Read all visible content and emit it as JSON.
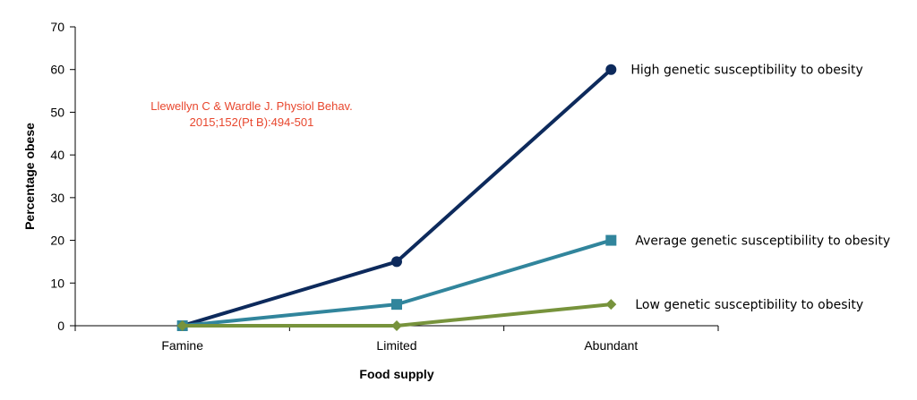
{
  "chart_data": {
    "type": "line",
    "title": "",
    "xlabel": "Food supply",
    "ylabel": "Percentage obese",
    "categories": [
      "Famine",
      "Limited",
      "Abundant"
    ],
    "ylim": [
      0,
      70
    ],
    "yticks": [
      0,
      10,
      20,
      30,
      40,
      50,
      60,
      70
    ],
    "grid": false,
    "legend": "labels at line ends (right)",
    "series": [
      {
        "name": "High genetic susceptibility to obesity",
        "values": [
          0,
          15,
          60
        ],
        "color": "#0d2a5c",
        "marker": "circle"
      },
      {
        "name": "Average genetic susceptibility to obesity",
        "values": [
          0,
          5,
          20
        ],
        "color": "#31859c",
        "marker": "square"
      },
      {
        "name": "Low genetic susceptibility to obesity",
        "values": [
          0,
          0,
          5
        ],
        "color": "#77933c",
        "marker": "diamond"
      }
    ],
    "annotations": [
      {
        "lines": [
          "Llewellyn C & Wardle J.  Physiol Behav.",
          "2015;152(Pt B):494-501"
        ],
        "color": "#e8472e"
      }
    ]
  }
}
